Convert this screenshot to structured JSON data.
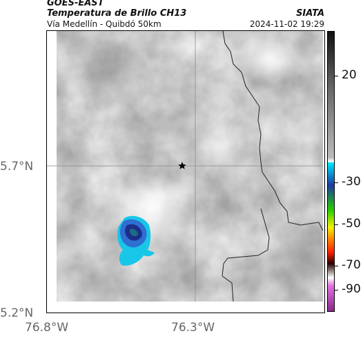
{
  "header": {
    "agency": "GOES-EAST",
    "product": "Temperatura de Brillo CH13",
    "subtitle": "Vía Medellín - Quibdó 50km",
    "organization": "SIATA",
    "datetime": "2024-11-02 19:29"
  },
  "map": {
    "lat_labels": [
      "5.7°N",
      "5.2°N"
    ],
    "lon_labels": [
      "76.8°W",
      "76.3°W"
    ],
    "marker_icon": "star-icon",
    "colors": {
      "frame": "#000000",
      "grid": "#888888",
      "border_line": "#222222",
      "cloud_cold": "#1b2f8a",
      "cloud_mid": "#2e6fd0",
      "cloud_edge": "#18c6e8"
    }
  },
  "colorbar": {
    "labels": [
      "20",
      "-30",
      "-50",
      "-70",
      "-90"
    ],
    "colors": [
      "#111111",
      "#666666",
      "#bbbbbb",
      "#ffffff",
      "#00e5ff",
      "#1d3a9e",
      "#2bd000",
      "#f4ef00",
      "#ff8c00",
      "#ff1d00",
      "#2a0000",
      "#ffffff",
      "#e070e0",
      "#8b2a8b"
    ]
  }
}
